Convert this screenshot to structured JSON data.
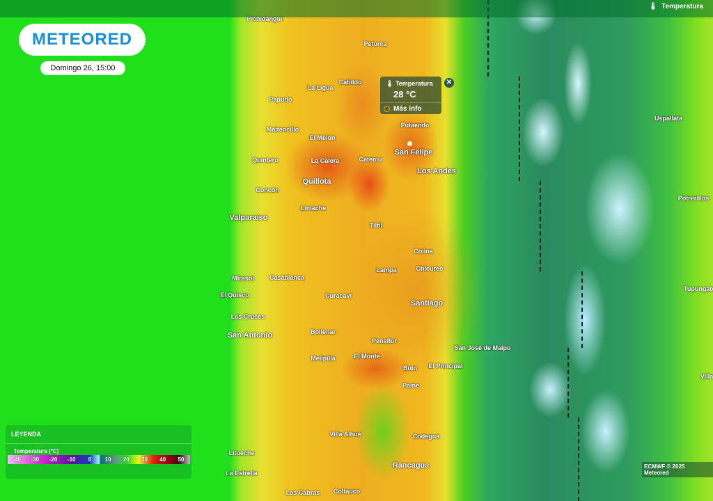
{
  "brand": "METEORED",
  "date_label": "Domingo 26, 15:00",
  "layer_selector": {
    "label": "Temperatura",
    "icon": "thermometer-icon"
  },
  "tooltip": {
    "title": "Temperatura",
    "value": "28 °C",
    "more": "Más info",
    "icon": "thermometer-icon"
  },
  "legend": {
    "title": "LEYENDA",
    "subtitle": "Temperatura (°C)",
    "ticks": [
      "-40",
      "-30",
      "-20",
      "-10",
      "0",
      "10",
      "20",
      "30",
      "40",
      "50"
    ]
  },
  "attribution": "ECMWF © 2025 Meteored",
  "colors": {
    "ocean": "#1fe01a",
    "hot": "#e04010",
    "snow": "#c8f0ff",
    "logo": "#1a8fd8"
  },
  "places": [
    "Pichidangui",
    "Petorca",
    "La Ligua",
    "Cabildo",
    "Papudo",
    "Maitencillo",
    "El Melón",
    "Quintero",
    "La Calera",
    "Catemu",
    "San Felipe",
    "Putaendo",
    "Los Andes",
    "Quillota",
    "Concón",
    "Limache",
    "Valparaíso",
    "Tiltil",
    "Colina",
    "Lampa",
    "Chicureo",
    "Mirasol",
    "Casablanca",
    "El Quisco",
    "Curacaví",
    "Santiago",
    "Las Cruces",
    "Bollenar",
    "San Antonio",
    "Peñaflor",
    "San José de Maipo",
    "Melipilla",
    "El Monte",
    "Buin",
    "El Principal",
    "Paine",
    "Villa Alhué",
    "Codegua",
    "Litueche",
    "Rancagua",
    "La Estrella",
    "Las Cabras",
    "Coltauco",
    "Uspallata",
    "Potrerillos",
    "Tupungato",
    "Villa"
  ]
}
